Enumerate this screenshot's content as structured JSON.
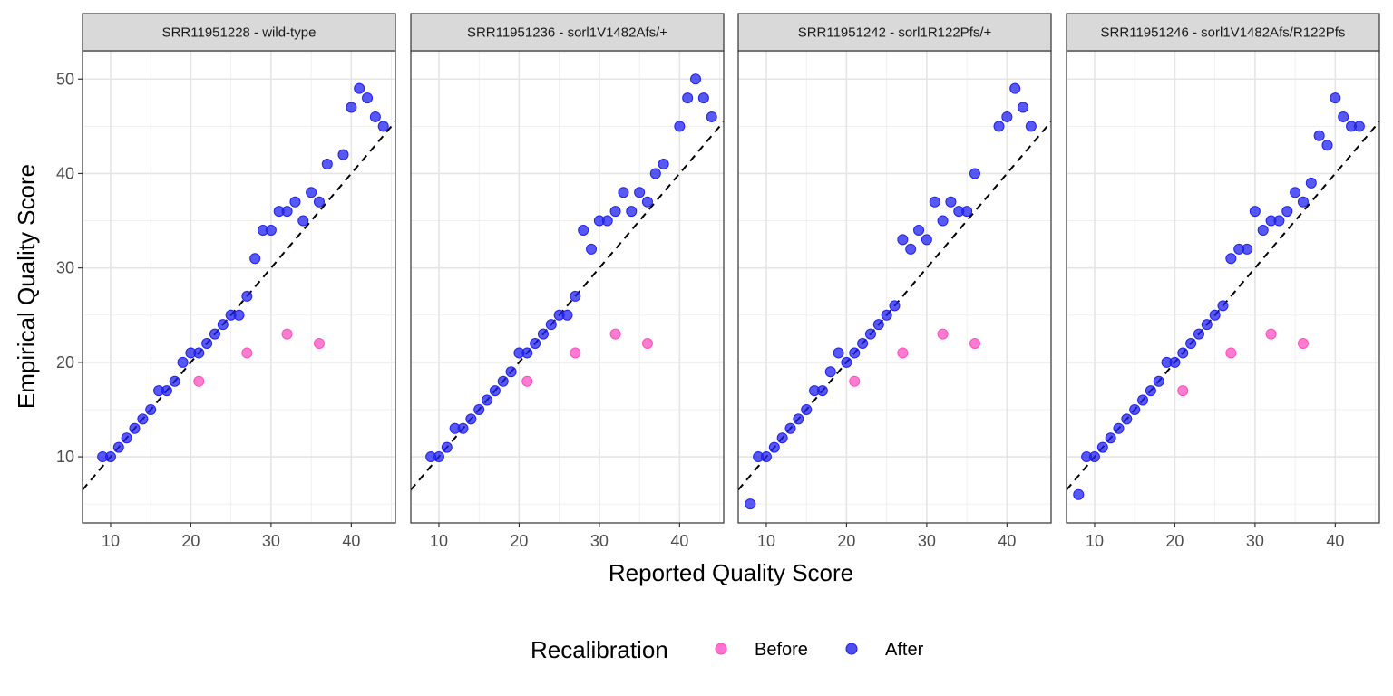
{
  "chart_data": {
    "type": "scatter",
    "xlabel": "Reported Quality Score",
    "ylabel": "Empirical Quality Score",
    "xlim": [
      6.5,
      45.5
    ],
    "ylim": [
      3,
      53
    ],
    "x_ticks": [
      10,
      20,
      30,
      40
    ],
    "y_ticks": [
      10,
      20,
      30,
      40,
      50
    ],
    "grid": true,
    "reference_line": {
      "type": "identity",
      "style": "dashed",
      "color": "#000000"
    },
    "legend": {
      "title": "Recalibration",
      "position": "bottom",
      "entries": [
        {
          "label": "Before",
          "color": "#FF4FC0"
        },
        {
          "label": "After",
          "color": "#2020F0"
        }
      ]
    },
    "panels": [
      {
        "title": "SRR11951228 - wild-type",
        "series": [
          {
            "name": "Before",
            "points": [
              [
                21,
                18
              ],
              [
                27,
                21
              ],
              [
                32,
                23
              ],
              [
                36,
                22
              ]
            ]
          },
          {
            "name": "After",
            "points": [
              [
                9,
                10
              ],
              [
                10,
                10
              ],
              [
                11,
                11
              ],
              [
                12,
                12
              ],
              [
                13,
                13
              ],
              [
                14,
                14
              ],
              [
                15,
                15
              ],
              [
                16,
                17
              ],
              [
                17,
                17
              ],
              [
                18,
                18
              ],
              [
                19,
                20
              ],
              [
                20,
                21
              ],
              [
                21,
                21
              ],
              [
                22,
                22
              ],
              [
                23,
                23
              ],
              [
                24,
                24
              ],
              [
                25,
                25
              ],
              [
                26,
                25
              ],
              [
                27,
                27
              ],
              [
                28,
                31
              ],
              [
                29,
                34
              ],
              [
                30,
                34
              ],
              [
                31,
                36
              ],
              [
                32,
                36
              ],
              [
                33,
                37
              ],
              [
                34,
                35
              ],
              [
                35,
                38
              ],
              [
                36,
                37
              ],
              [
                37,
                41
              ],
              [
                39,
                42
              ],
              [
                40,
                47
              ],
              [
                41,
                49
              ],
              [
                42,
                48
              ],
              [
                43,
                46
              ],
              [
                44,
                45
              ]
            ]
          }
        ]
      },
      {
        "title": "SRR11951236 - sorl1V1482Afs/+",
        "series": [
          {
            "name": "Before",
            "points": [
              [
                21,
                18
              ],
              [
                27,
                21
              ],
              [
                32,
                23
              ],
              [
                36,
                22
              ]
            ]
          },
          {
            "name": "After",
            "points": [
              [
                9,
                10
              ],
              [
                10,
                10
              ],
              [
                11,
                11
              ],
              [
                12,
                13
              ],
              [
                13,
                13
              ],
              [
                14,
                14
              ],
              [
                15,
                15
              ],
              [
                16,
                16
              ],
              [
                17,
                17
              ],
              [
                18,
                18
              ],
              [
                19,
                19
              ],
              [
                20,
                21
              ],
              [
                21,
                21
              ],
              [
                22,
                22
              ],
              [
                23,
                23
              ],
              [
                24,
                24
              ],
              [
                25,
                25
              ],
              [
                26,
                25
              ],
              [
                27,
                27
              ],
              [
                28,
                34
              ],
              [
                29,
                32
              ],
              [
                30,
                35
              ],
              [
                31,
                35
              ],
              [
                32,
                36
              ],
              [
                33,
                38
              ],
              [
                34,
                36
              ],
              [
                35,
                38
              ],
              [
                36,
                37
              ],
              [
                37,
                40
              ],
              [
                38,
                41
              ],
              [
                40,
                45
              ],
              [
                41,
                48
              ],
              [
                42,
                50
              ],
              [
                43,
                48
              ],
              [
                44,
                46
              ]
            ]
          }
        ]
      },
      {
        "title": "SRR11951242 - sorl1R122Pfs/+",
        "series": [
          {
            "name": "Before",
            "points": [
              [
                21,
                18
              ],
              [
                27,
                21
              ],
              [
                32,
                23
              ],
              [
                36,
                22
              ]
            ]
          },
          {
            "name": "After",
            "points": [
              [
                8,
                5
              ],
              [
                9,
                10
              ],
              [
                10,
                10
              ],
              [
                11,
                11
              ],
              [
                12,
                12
              ],
              [
                13,
                13
              ],
              [
                14,
                14
              ],
              [
                15,
                15
              ],
              [
                16,
                17
              ],
              [
                17,
                17
              ],
              [
                18,
                19
              ],
              [
                19,
                21
              ],
              [
                20,
                20
              ],
              [
                21,
                21
              ],
              [
                22,
                22
              ],
              [
                23,
                23
              ],
              [
                24,
                24
              ],
              [
                25,
                25
              ],
              [
                26,
                26
              ],
              [
                27,
                33
              ],
              [
                28,
                32
              ],
              [
                29,
                34
              ],
              [
                30,
                33
              ],
              [
                31,
                37
              ],
              [
                32,
                35
              ],
              [
                33,
                37
              ],
              [
                34,
                36
              ],
              [
                35,
                36
              ],
              [
                36,
                40
              ],
              [
                39,
                45
              ],
              [
                40,
                46
              ],
              [
                41,
                49
              ],
              [
                42,
                47
              ],
              [
                43,
                45
              ]
            ]
          }
        ]
      },
      {
        "title": "SRR11951246 - sorl1V1482Afs/R122Pfs",
        "series": [
          {
            "name": "Before",
            "points": [
              [
                21,
                17
              ],
              [
                27,
                21
              ],
              [
                32,
                23
              ],
              [
                36,
                22
              ]
            ]
          },
          {
            "name": "After",
            "points": [
              [
                8,
                6
              ],
              [
                9,
                10
              ],
              [
                10,
                10
              ],
              [
                11,
                11
              ],
              [
                12,
                12
              ],
              [
                13,
                13
              ],
              [
                14,
                14
              ],
              [
                15,
                15
              ],
              [
                16,
                16
              ],
              [
                17,
                17
              ],
              [
                18,
                18
              ],
              [
                19,
                20
              ],
              [
                20,
                20
              ],
              [
                21,
                21
              ],
              [
                22,
                22
              ],
              [
                23,
                23
              ],
              [
                24,
                24
              ],
              [
                25,
                25
              ],
              [
                26,
                26
              ],
              [
                27,
                31
              ],
              [
                28,
                32
              ],
              [
                29,
                32
              ],
              [
                30,
                36
              ],
              [
                31,
                34
              ],
              [
                32,
                35
              ],
              [
                33,
                35
              ],
              [
                34,
                36
              ],
              [
                35,
                38
              ],
              [
                36,
                37
              ],
              [
                37,
                39
              ],
              [
                38,
                44
              ],
              [
                39,
                43
              ],
              [
                40,
                48
              ],
              [
                41,
                46
              ],
              [
                42,
                45
              ],
              [
                43,
                45
              ]
            ]
          }
        ]
      }
    ]
  }
}
